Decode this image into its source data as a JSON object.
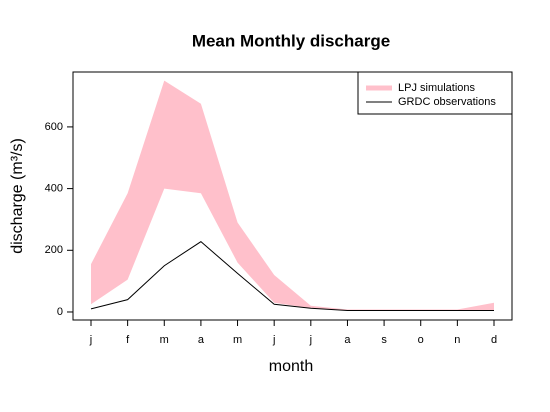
{
  "chart_data": {
    "type": "band-line",
    "title": "Mean Monthly discharge",
    "x_label": "month",
    "y_label": "discharge (m³/s)",
    "categories": [
      "j",
      "f",
      "m",
      "a",
      "m",
      "j",
      "j",
      "a",
      "s",
      "o",
      "n",
      "d"
    ],
    "series": [
      {
        "name": "LPJ simulations",
        "color": "#ffc0cb",
        "high": [
          155,
          385,
          750,
          675,
          290,
          120,
          20,
          8,
          8,
          8,
          8,
          30
        ],
        "low": [
          25,
          105,
          400,
          385,
          160,
          30,
          12,
          5,
          5,
          5,
          5,
          5
        ]
      },
      {
        "name": "GRDC observations",
        "color": "#000000",
        "values": [
          10,
          40,
          150,
          228,
          125,
          25,
          12,
          5,
          5,
          5,
          5,
          5
        ]
      }
    ],
    "ylim": [
      -26,
      778
    ],
    "yticks": [
      0,
      200,
      400,
      600
    ],
    "legend": "top-right"
  }
}
